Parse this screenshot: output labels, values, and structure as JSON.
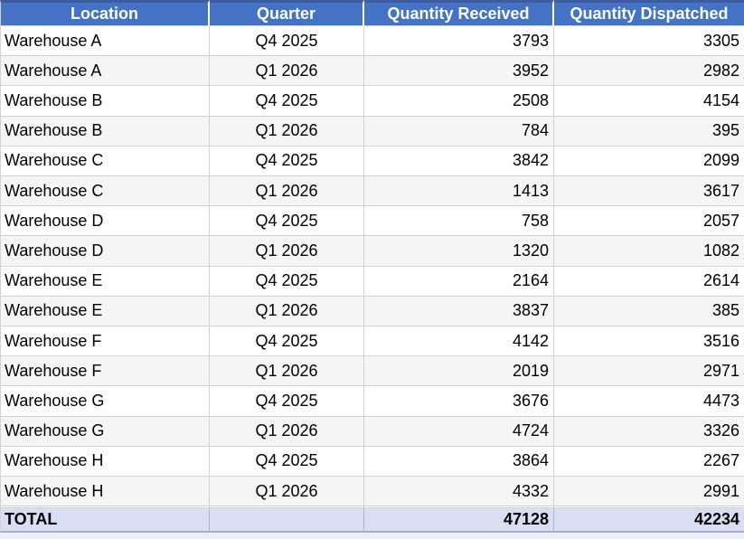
{
  "header": {
    "columns": [
      "Location",
      "Quarter",
      "Quantity Received",
      "Quantity Dispatched"
    ]
  },
  "rows": [
    [
      "Warehouse A",
      "Q4 2025",
      "3793",
      "3305"
    ],
    [
      "Warehouse A",
      "Q1 2026",
      "3952",
      "2982"
    ],
    [
      "Warehouse B",
      "Q4 2025",
      "2508",
      "4154"
    ],
    [
      "Warehouse B",
      "Q1 2026",
      "784",
      "395"
    ],
    [
      "Warehouse C",
      "Q4 2025",
      "3842",
      "2099"
    ],
    [
      "Warehouse C",
      "Q1 2026",
      "1413",
      "3617"
    ],
    [
      "Warehouse D",
      "Q4 2025",
      "758",
      "2057"
    ],
    [
      "Warehouse D",
      "Q1 2026",
      "1320",
      "1082"
    ],
    [
      "Warehouse E",
      "Q4 2025",
      "2164",
      "2614"
    ],
    [
      "Warehouse E",
      "Q1 2026",
      "3837",
      "385"
    ],
    [
      "Warehouse F",
      "Q4 2025",
      "4142",
      "3516"
    ],
    [
      "Warehouse F",
      "Q1 2026",
      "2019",
      "2971"
    ],
    [
      "Warehouse G",
      "Q4 2025",
      "3676",
      "4473"
    ],
    [
      "Warehouse G",
      "Q1 2026",
      "4724",
      "3326"
    ],
    [
      "Warehouse H",
      "Q4 2025",
      "3864",
      "2267"
    ],
    [
      "Warehouse H",
      "Q1 2026",
      "4332",
      "2991"
    ],
    [
      "",
      "",
      "",
      ""
    ]
  ],
  "total": {
    "label": "TOTAL",
    "quarter": "",
    "received": "47128",
    "dispatched": "42234"
  },
  "colors": {
    "header_bg": "#4472C4",
    "header_text": "#FFFFFF",
    "header_top_border": "#3E5C9E",
    "gridline": "#D2D2D2",
    "band_row_bg": "#F5F5F5",
    "total_row_bg": "#D9DFF2",
    "total_row_border": "#A9AFC9"
  }
}
